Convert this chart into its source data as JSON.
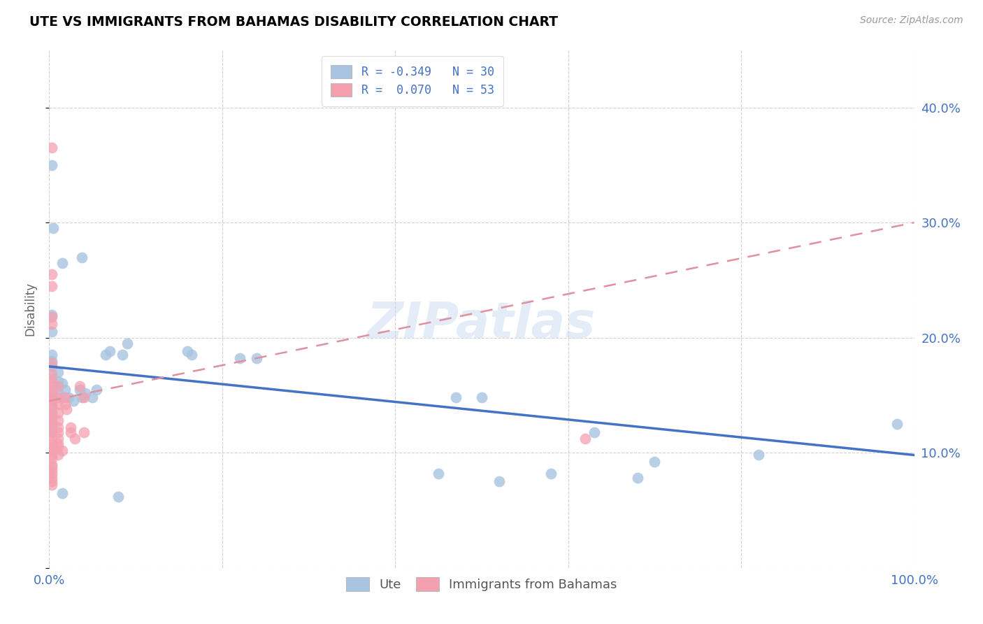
{
  "title": "UTE VS IMMIGRANTS FROM BAHAMAS DISABILITY CORRELATION CHART",
  "source": "Source: ZipAtlas.com",
  "ylabel": "Disability",
  "xlim": [
    0.0,
    1.0
  ],
  "ylim": [
    0.0,
    0.45
  ],
  "yticks": [
    0.0,
    0.1,
    0.2,
    0.3,
    0.4
  ],
  "ytick_labels": [
    "",
    "10.0%",
    "20.0%",
    "30.0%",
    "40.0%"
  ],
  "xticks": [
    0.0,
    0.2,
    0.4,
    0.6,
    0.8,
    1.0
  ],
  "xtick_labels": [
    "0.0%",
    "",
    "",
    "",
    "",
    "100.0%"
  ],
  "ute_color": "#a8c4e0",
  "bahamas_color": "#f4a0b0",
  "ute_line_color": "#4472c4",
  "bahamas_line_color": "#e090a0",
  "watermark_text": "ZIPatlas",
  "ute_line": [
    0.0,
    0.175,
    1.0,
    0.098
  ],
  "bahamas_line": [
    0.0,
    0.145,
    1.0,
    0.3
  ],
  "ute_points": [
    [
      0.005,
      0.295
    ],
    [
      0.015,
      0.265
    ],
    [
      0.038,
      0.27
    ],
    [
      0.003,
      0.35
    ],
    [
      0.003,
      0.175
    ],
    [
      0.003,
      0.22
    ],
    [
      0.003,
      0.205
    ],
    [
      0.003,
      0.185
    ],
    [
      0.003,
      0.18
    ],
    [
      0.003,
      0.175
    ],
    [
      0.003,
      0.165
    ],
    [
      0.003,
      0.155
    ],
    [
      0.003,
      0.148
    ],
    [
      0.003,
      0.142
    ],
    [
      0.003,
      0.135
    ],
    [
      0.003,
      0.125
    ],
    [
      0.003,
      0.118
    ],
    [
      0.01,
      0.17
    ],
    [
      0.01,
      0.162
    ],
    [
      0.01,
      0.155
    ],
    [
      0.015,
      0.16
    ],
    [
      0.015,
      0.148
    ],
    [
      0.018,
      0.155
    ],
    [
      0.022,
      0.148
    ],
    [
      0.028,
      0.145
    ],
    [
      0.035,
      0.155
    ],
    [
      0.038,
      0.148
    ],
    [
      0.042,
      0.152
    ],
    [
      0.05,
      0.148
    ],
    [
      0.055,
      0.155
    ],
    [
      0.065,
      0.185
    ],
    [
      0.07,
      0.188
    ],
    [
      0.085,
      0.185
    ],
    [
      0.09,
      0.195
    ],
    [
      0.16,
      0.188
    ],
    [
      0.165,
      0.185
    ],
    [
      0.22,
      0.182
    ],
    [
      0.24,
      0.182
    ],
    [
      0.47,
      0.148
    ],
    [
      0.5,
      0.148
    ],
    [
      0.63,
      0.118
    ],
    [
      0.7,
      0.092
    ],
    [
      0.82,
      0.098
    ],
    [
      0.98,
      0.125
    ],
    [
      0.015,
      0.065
    ],
    [
      0.08,
      0.062
    ],
    [
      0.45,
      0.082
    ],
    [
      0.52,
      0.075
    ],
    [
      0.58,
      0.082
    ],
    [
      0.68,
      0.078
    ]
  ],
  "bahamas_points": [
    [
      0.003,
      0.365
    ],
    [
      0.003,
      0.255
    ],
    [
      0.003,
      0.245
    ],
    [
      0.003,
      0.218
    ],
    [
      0.003,
      0.212
    ],
    [
      0.003,
      0.178
    ],
    [
      0.003,
      0.168
    ],
    [
      0.003,
      0.162
    ],
    [
      0.003,
      0.158
    ],
    [
      0.003,
      0.152
    ],
    [
      0.003,
      0.148
    ],
    [
      0.003,
      0.145
    ],
    [
      0.003,
      0.14
    ],
    [
      0.003,
      0.135
    ],
    [
      0.003,
      0.132
    ],
    [
      0.003,
      0.128
    ],
    [
      0.003,
      0.122
    ],
    [
      0.003,
      0.118
    ],
    [
      0.003,
      0.112
    ],
    [
      0.003,
      0.108
    ],
    [
      0.003,
      0.105
    ],
    [
      0.003,
      0.102
    ],
    [
      0.003,
      0.098
    ],
    [
      0.003,
      0.095
    ],
    [
      0.003,
      0.09
    ],
    [
      0.003,
      0.088
    ],
    [
      0.003,
      0.085
    ],
    [
      0.003,
      0.082
    ],
    [
      0.003,
      0.078
    ],
    [
      0.003,
      0.075
    ],
    [
      0.003,
      0.072
    ],
    [
      0.01,
      0.158
    ],
    [
      0.01,
      0.148
    ],
    [
      0.01,
      0.142
    ],
    [
      0.01,
      0.135
    ],
    [
      0.01,
      0.128
    ],
    [
      0.01,
      0.122
    ],
    [
      0.01,
      0.118
    ],
    [
      0.01,
      0.112
    ],
    [
      0.01,
      0.108
    ],
    [
      0.01,
      0.105
    ],
    [
      0.01,
      0.098
    ],
    [
      0.018,
      0.148
    ],
    [
      0.018,
      0.142
    ],
    [
      0.02,
      0.138
    ],
    [
      0.025,
      0.122
    ],
    [
      0.025,
      0.118
    ],
    [
      0.03,
      0.112
    ],
    [
      0.035,
      0.158
    ],
    [
      0.04,
      0.148
    ],
    [
      0.04,
      0.118
    ],
    [
      0.62,
      0.112
    ],
    [
      0.015,
      0.102
    ]
  ]
}
